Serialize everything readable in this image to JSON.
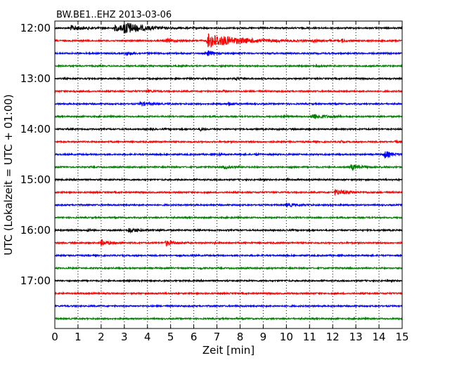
{
  "chart_data": {
    "type": "line",
    "title": "BW.BE1..EHZ 2013-03-06",
    "xlabel": "Zeit  [min]",
    "ylabel": "UTC (Lokalzeit = UTC + 01:00)",
    "xlim": [
      0,
      15
    ],
    "x_ticks": [
      "0",
      "1",
      "2",
      "3",
      "4",
      "5",
      "6",
      "7",
      "8",
      "9",
      "10",
      "11",
      "12",
      "13",
      "14",
      "15"
    ],
    "y_ticks": [
      "12:00",
      "13:00",
      "14:00",
      "15:00",
      "16:00",
      "17:00"
    ],
    "grid": "vertical dotted",
    "trace_colors": [
      "#000000",
      "#ff0000",
      "#0000ff",
      "#008000"
    ],
    "traces": [
      {
        "start": "12:00",
        "events": [
          {
            "t": 0.7,
            "amp": 0.8,
            "dur": 0.5
          },
          {
            "t": 3.0,
            "amp": 1.6,
            "dur": 0.6
          },
          {
            "t": 2.6,
            "amp": 0.9,
            "dur": 0.9
          }
        ]
      },
      {
        "start": "12:15",
        "events": [
          {
            "t": 6.6,
            "amp": 2.2,
            "dur": 1.3
          },
          {
            "t": 4.8,
            "amp": 0.5,
            "dur": 0.4
          },
          {
            "t": 11.2,
            "amp": 0.5,
            "dur": 0.1
          },
          {
            "t": 12.4,
            "amp": 0.5,
            "dur": 0.1
          }
        ]
      },
      {
        "start": "12:30",
        "events": [
          {
            "t": 3.1,
            "amp": 0.6,
            "dur": 0.2
          },
          {
            "t": 6.6,
            "amp": 0.9,
            "dur": 0.2
          }
        ]
      },
      {
        "start": "12:45",
        "events": [
          {
            "t": 11.3,
            "amp": 0.4,
            "dur": 0.1
          }
        ]
      },
      {
        "start": "13:00",
        "events": [
          {
            "t": 7.8,
            "amp": 0.6,
            "dur": 0.1
          }
        ]
      },
      {
        "start": "13:15",
        "events": [
          {
            "t": 0.8,
            "amp": 0.4,
            "dur": 0.1
          },
          {
            "t": 4.0,
            "amp": 0.4,
            "dur": 0.2
          },
          {
            "t": 7.3,
            "amp": 0.4,
            "dur": 0.1
          }
        ]
      },
      {
        "start": "13:30",
        "events": [
          {
            "t": 3.7,
            "amp": 0.7,
            "dur": 0.3
          },
          {
            "t": 7.5,
            "amp": 0.6,
            "dur": 0.2
          }
        ]
      },
      {
        "start": "13:45",
        "events": [
          {
            "t": 11.1,
            "amp": 0.9,
            "dur": 0.5
          },
          {
            "t": 9.9,
            "amp": 0.3,
            "dur": 0.1
          }
        ]
      },
      {
        "start": "14:00",
        "events": [
          {
            "t": 6.3,
            "amp": 0.4,
            "dur": 0.1
          },
          {
            "t": 4.1,
            "amp": 0.3,
            "dur": 0.1
          }
        ]
      },
      {
        "start": "14:15",
        "events": [
          {
            "t": 12.3,
            "amp": 0.4,
            "dur": 0.1
          },
          {
            "t": 14.7,
            "amp": 0.5,
            "dur": 0.1
          }
        ]
      },
      {
        "start": "14:30",
        "events": [
          {
            "t": 14.2,
            "amp": 1.3,
            "dur": 0.3
          },
          {
            "t": 8.7,
            "amp": 0.4,
            "dur": 0.1
          },
          {
            "t": 7.1,
            "amp": 0.3,
            "dur": 0.1
          }
        ]
      },
      {
        "start": "14:45",
        "events": [
          {
            "t": 12.8,
            "amp": 0.9,
            "dur": 0.4
          },
          {
            "t": 7.3,
            "amp": 0.5,
            "dur": 0.3
          },
          {
            "t": 10.2,
            "amp": 0.4,
            "dur": 0.1
          }
        ]
      },
      {
        "start": "15:00",
        "events": [
          {
            "t": 10.0,
            "amp": 0.3,
            "dur": 0.1
          }
        ]
      },
      {
        "start": "15:15",
        "events": [
          {
            "t": 12.1,
            "amp": 0.9,
            "dur": 0.5
          }
        ]
      },
      {
        "start": "15:30",
        "events": [
          {
            "t": 10.0,
            "amp": 0.5,
            "dur": 0.4
          },
          {
            "t": 11.9,
            "amp": 0.3,
            "dur": 0.1
          }
        ]
      },
      {
        "start": "15:45",
        "events": []
      },
      {
        "start": "16:00",
        "events": [
          {
            "t": 3.2,
            "amp": 0.7,
            "dur": 0.4
          },
          {
            "t": 1.4,
            "amp": 0.4,
            "dur": 0.1
          }
        ]
      },
      {
        "start": "16:15",
        "events": [
          {
            "t": 2.0,
            "amp": 0.9,
            "dur": 0.3
          },
          {
            "t": 4.8,
            "amp": 0.9,
            "dur": 0.3
          },
          {
            "t": 6.9,
            "amp": 0.3,
            "dur": 0.1
          }
        ]
      },
      {
        "start": "16:30",
        "events": []
      },
      {
        "start": "16:45",
        "events": [
          {
            "t": 6.3,
            "amp": 0.3,
            "dur": 0.1
          }
        ]
      },
      {
        "start": "17:00",
        "events": []
      },
      {
        "start": "17:15",
        "events": []
      },
      {
        "start": "17:30",
        "events": []
      },
      {
        "start": "17:45",
        "events": []
      }
    ]
  }
}
